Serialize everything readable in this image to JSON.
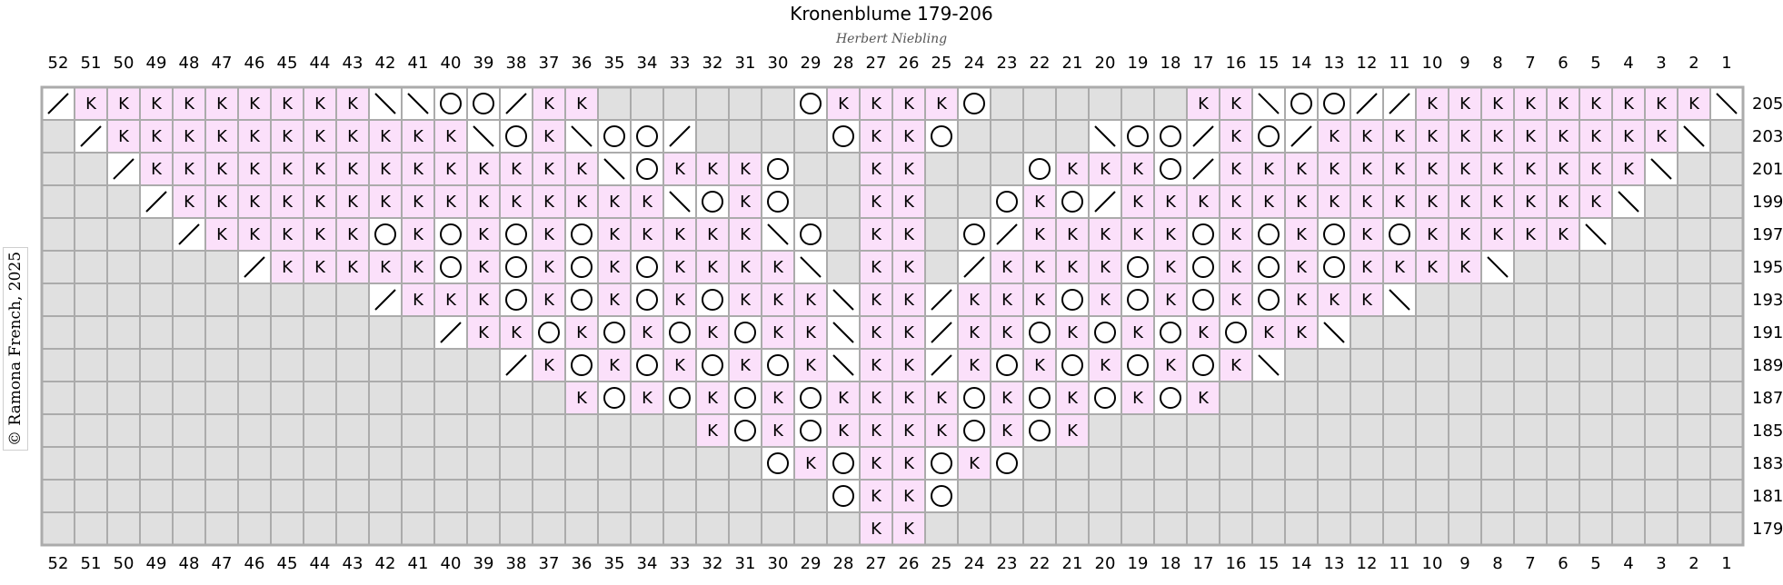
{
  "title": "Kronenblume 179-206",
  "subtitle": "Herbert Niebling",
  "copyright": "© Ramona French, 2025",
  "colors": {
    "knit": "#fbe0fa",
    "noStitch": "#e0e0e0",
    "empty": "#ffffff",
    "grid": "#ababab"
  },
  "symbol_legend_codes": {
    "K": "knit",
    "O": "yarn-over",
    "/": "right-leaning decrease",
    "\\": "left-leaning decrease",
    "X": "no stitch",
    ".": "empty"
  },
  "columns_top": [
    "52",
    "51",
    "50",
    "49",
    "48",
    "47",
    "46",
    "45",
    "44",
    "43",
    "42",
    "41",
    "40",
    "39",
    "38",
    "37",
    "36",
    "35",
    "34",
    "33",
    "32",
    "31",
    "30",
    "29",
    "28",
    "27",
    "26",
    "25",
    "24",
    "23",
    "22",
    "21",
    "20",
    "19",
    "18",
    "17",
    "16",
    "15",
    "14",
    "13",
    "12",
    "11",
    "10",
    "9",
    "8",
    "7",
    "6",
    "5",
    "4",
    "3",
    "2",
    "1"
  ],
  "columns_bottom": [
    "52",
    "51",
    "50",
    "49",
    "48",
    "47",
    "46",
    "45",
    "44",
    "43",
    "42",
    "41",
    "40",
    "39",
    "38",
    "37",
    "36",
    "35",
    "34",
    "33",
    "32",
    "31",
    "30",
    "29",
    "28",
    "27",
    "26",
    "25",
    "24",
    "23",
    "22",
    "21",
    "20",
    "19",
    "18",
    "17",
    "16",
    "15",
    "14",
    "13",
    "12",
    "11",
    "10",
    "9",
    "8",
    "7",
    "6",
    "5",
    "4",
    "3",
    "2",
    "1"
  ],
  "rows": [
    "205",
    "203",
    "201",
    "199",
    "197",
    "195",
    "193",
    "191",
    "189",
    "187",
    "185",
    "183",
    "181",
    "179"
  ],
  "chart_data": {
    "type": "table",
    "description_codes": "K=knit, O=yarn-over, /=right decrease, \\=left decrease, X=no stitch, .=empty",
    "grid": [
      [
        "/",
        "K",
        "K",
        "K",
        "K",
        "K",
        "K",
        "K",
        "K",
        "K",
        "\\",
        "\\",
        "O",
        "O",
        "/",
        "K",
        "K",
        "X",
        "X",
        "X",
        "X",
        "X",
        "X",
        "O",
        "K",
        "K",
        "K",
        "K",
        "O",
        "X",
        "X",
        "X",
        "X",
        "X",
        "X",
        "K",
        "K",
        "\\",
        "O",
        "O",
        "/",
        "/",
        "K",
        "K",
        "K",
        "K",
        "K",
        "K",
        "K",
        "K",
        "K",
        "\\"
      ],
      [
        "X",
        "/",
        "K",
        "K",
        "K",
        "K",
        "K",
        "K",
        "K",
        "K",
        "K",
        "K",
        "K",
        "\\",
        "O",
        "K",
        "\\",
        "O",
        "O",
        "/",
        "X",
        "X",
        "X",
        "X",
        "O",
        "K",
        "K",
        "O",
        "X",
        "X",
        "X",
        "X",
        "\\",
        "O",
        "O",
        "/",
        "K",
        "O",
        "/",
        "K",
        "K",
        "K",
        "K",
        "K",
        "K",
        "K",
        "K",
        "K",
        "K",
        "K",
        "\\",
        "X"
      ],
      [
        "X",
        "X",
        "/",
        "K",
        "K",
        "K",
        "K",
        "K",
        "K",
        "K",
        "K",
        "K",
        "K",
        "K",
        "K",
        "K",
        "K",
        "\\",
        "O",
        "K",
        "K",
        "K",
        "O",
        "X",
        "X",
        "K",
        "K",
        "X",
        "X",
        "X",
        "O",
        "K",
        "K",
        "K",
        "O",
        "/",
        "K",
        "K",
        "K",
        "K",
        "K",
        "K",
        "K",
        "K",
        "K",
        "K",
        "K",
        "K",
        "K",
        "\\",
        "X",
        "X"
      ],
      [
        "X",
        "X",
        "X",
        "/",
        "K",
        "K",
        "K",
        "K",
        "K",
        "K",
        "K",
        "K",
        "K",
        "K",
        "K",
        "K",
        "K",
        "K",
        "K",
        "\\",
        "O",
        "K",
        "O",
        "X",
        "X",
        "K",
        "K",
        "X",
        "X",
        "O",
        "K",
        "O",
        "/",
        "K",
        "K",
        "K",
        "K",
        "K",
        "K",
        "K",
        "K",
        "K",
        "K",
        "K",
        "K",
        "K",
        "K",
        "K",
        "\\",
        "X",
        "X",
        "X"
      ],
      [
        "X",
        "X",
        "X",
        "X",
        "/",
        "K",
        "K",
        "K",
        "K",
        "K",
        "O",
        "K",
        "O",
        "K",
        "O",
        "K",
        "O",
        "K",
        "K",
        "K",
        "K",
        "K",
        "\\",
        "O",
        "X",
        "K",
        "K",
        "X",
        "O",
        "/",
        "K",
        "K",
        "K",
        "K",
        "K",
        "O",
        "K",
        "O",
        "K",
        "O",
        "K",
        "O",
        "K",
        "K",
        "K",
        "K",
        "K",
        "\\",
        "X",
        "X",
        "X",
        "X"
      ],
      [
        "X",
        "X",
        "X",
        "X",
        "X",
        "X",
        "/",
        "K",
        "K",
        "K",
        "K",
        "K",
        "O",
        "K",
        "O",
        "K",
        "O",
        "K",
        "O",
        "K",
        "K",
        "K",
        "K",
        "\\",
        "X",
        "K",
        "K",
        "X",
        "/",
        "K",
        "K",
        "K",
        "K",
        "O",
        "K",
        "O",
        "K",
        "O",
        "K",
        "O",
        "K",
        "K",
        "K",
        "K",
        "\\",
        "X",
        "X",
        "X",
        "X",
        "X",
        "X",
        "X"
      ],
      [
        "X",
        "X",
        "X",
        "X",
        "X",
        "X",
        "X",
        "X",
        "X",
        "X",
        "/",
        "K",
        "K",
        "K",
        "O",
        "K",
        "O",
        "K",
        "O",
        "K",
        "O",
        "K",
        "K",
        "K",
        "\\",
        "K",
        "K",
        "/",
        "K",
        "K",
        "K",
        "O",
        "K",
        "O",
        "K",
        "O",
        "K",
        "O",
        "K",
        "K",
        "K",
        "\\",
        "X",
        "X",
        "X",
        "X",
        "X",
        "X",
        "X",
        "X",
        "X",
        "X"
      ],
      [
        "X",
        "X",
        "X",
        "X",
        "X",
        "X",
        "X",
        "X",
        "X",
        "X",
        "X",
        "X",
        "/",
        "K",
        "K",
        "O",
        "K",
        "O",
        "K",
        "O",
        "K",
        "O",
        "K",
        "K",
        "\\",
        "K",
        "K",
        "/",
        "K",
        "K",
        "O",
        "K",
        "O",
        "K",
        "O",
        "K",
        "O",
        "K",
        "K",
        "\\",
        "X",
        "X",
        "X",
        "X",
        "X",
        "X",
        "X",
        "X",
        "X",
        "X",
        "X",
        "X"
      ],
      [
        "X",
        "X",
        "X",
        "X",
        "X",
        "X",
        "X",
        "X",
        "X",
        "X",
        "X",
        "X",
        "X",
        "X",
        "/",
        "K",
        "O",
        "K",
        "O",
        "K",
        "O",
        "K",
        "O",
        "K",
        "\\",
        "K",
        "K",
        "/",
        "K",
        "O",
        "K",
        "O",
        "K",
        "O",
        "K",
        "O",
        "K",
        "\\",
        "X",
        "X",
        "X",
        "X",
        "X",
        "X",
        "X",
        "X",
        "X",
        "X",
        "X",
        "X",
        "X",
        "X"
      ],
      [
        "X",
        "X",
        "X",
        "X",
        "X",
        "X",
        "X",
        "X",
        "X",
        "X",
        "X",
        "X",
        "X",
        "X",
        "X",
        "X",
        "K",
        "O",
        "K",
        "O",
        "K",
        "O",
        "K",
        "O",
        "K",
        "K",
        "K",
        "K",
        "O",
        "K",
        "O",
        "K",
        "O",
        "K",
        "O",
        "K",
        "X",
        "X",
        "X",
        "X",
        "X",
        "X",
        "X",
        "X",
        "X",
        "X",
        "X",
        "X",
        "X",
        "X",
        "X",
        "X"
      ],
      [
        "X",
        "X",
        "X",
        "X",
        "X",
        "X",
        "X",
        "X",
        "X",
        "X",
        "X",
        "X",
        "X",
        "X",
        "X",
        "X",
        "X",
        "X",
        "X",
        "X",
        "K",
        "O",
        "K",
        "O",
        "K",
        "K",
        "K",
        "K",
        "O",
        "K",
        "O",
        "K",
        "X",
        "X",
        "X",
        "X",
        "X",
        "X",
        "X",
        "X",
        "X",
        "X",
        "X",
        "X",
        "X",
        "X",
        "X",
        "X",
        "X",
        "X",
        "X",
        "X"
      ],
      [
        "X",
        "X",
        "X",
        "X",
        "X",
        "X",
        "X",
        "X",
        "X",
        "X",
        "X",
        "X",
        "X",
        "X",
        "X",
        "X",
        "X",
        "X",
        "X",
        "X",
        "X",
        "X",
        "O",
        "K",
        "O",
        "K",
        "K",
        "O",
        "K",
        "O",
        "X",
        "X",
        "X",
        "X",
        "X",
        "X",
        "X",
        "X",
        "X",
        "X",
        "X",
        "X",
        "X",
        "X",
        "X",
        "X",
        "X",
        "X",
        "X",
        "X",
        "X",
        "X"
      ],
      [
        "X",
        "X",
        "X",
        "X",
        "X",
        "X",
        "X",
        "X",
        "X",
        "X",
        "X",
        "X",
        "X",
        "X",
        "X",
        "X",
        "X",
        "X",
        "X",
        "X",
        "X",
        "X",
        "X",
        "X",
        "O",
        "K",
        "K",
        "O",
        "X",
        "X",
        "X",
        "X",
        "X",
        "X",
        "X",
        "X",
        "X",
        "X",
        "X",
        "X",
        "X",
        "X",
        "X",
        "X",
        "X",
        "X",
        "X",
        "X",
        "X",
        "X",
        "X",
        "X"
      ],
      [
        "X",
        "X",
        "X",
        "X",
        "X",
        "X",
        "X",
        "X",
        "X",
        "X",
        "X",
        "X",
        "X",
        "X",
        "X",
        "X",
        "X",
        "X",
        "X",
        "X",
        "X",
        "X",
        "X",
        "X",
        "X",
        "K",
        "K",
        "X",
        "X",
        "X",
        "X",
        "X",
        "X",
        "X",
        "X",
        "X",
        "X",
        "X",
        "X",
        "X",
        "X",
        "X",
        "X",
        "X",
        "X",
        "X",
        "X",
        "X",
        "X",
        "X",
        "X",
        "X"
      ]
    ]
  }
}
